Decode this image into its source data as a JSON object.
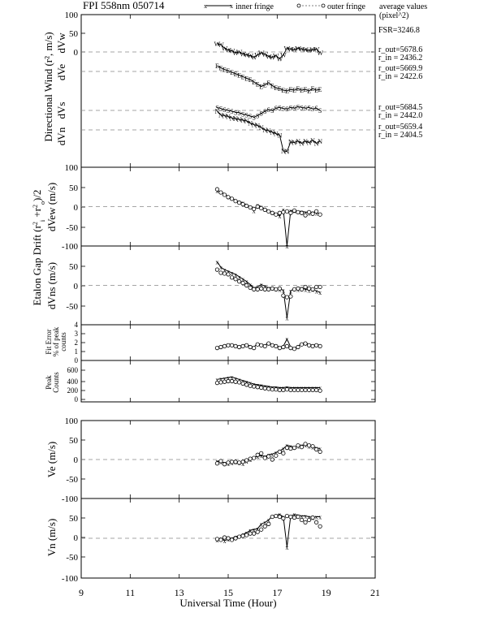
{
  "chart_data": {
    "type": "line",
    "title": "FPI 558nm 050714",
    "legend": {
      "inner": "inner fringe",
      "outer": "outer fringe",
      "avg": "average values",
      "avg_unit": "(pixel^2)",
      "placement": "top"
    },
    "xlabel": "Universal Time (Hour)",
    "xlim": [
      9,
      21
    ],
    "xticks": [
      "9",
      "11",
      "13",
      "15",
      "17",
      "19",
      "21"
    ],
    "x": [
      14.55,
      14.7,
      14.85,
      15.0,
      15.15,
      15.3,
      15.45,
      15.6,
      15.75,
      15.9,
      16.05,
      16.2,
      16.35,
      16.5,
      16.65,
      16.8,
      16.95,
      17.1,
      17.25,
      17.4,
      17.55,
      17.7,
      17.85,
      18.0,
      18.15,
      18.3,
      18.45,
      18.6,
      18.75
    ],
    "annotations": {
      "fsr": "FSR=3246.8",
      "w": [
        "r_out=5678.6",
        "r_in = 2436.2"
      ],
      "e": [
        "r_out=5669.9",
        "r_in = 2422.6"
      ],
      "s": [
        "r_out=5684.5",
        "r_in = 2442.0"
      ],
      "n": [
        "r_out=5659.4",
        "r_in = 2404.5"
      ]
    },
    "panels": [
      {
        "ylabel": "Directional Wind (r², m/s)",
        "yticks": [
          "100",
          "50",
          "0"
        ],
        "traces": [
          {
            "label": "dVw",
            "symbol": "W",
            "baseline": 0,
            "values": [
              22,
              20,
              10,
              5,
              3,
              -2,
              0,
              -5,
              -8,
              -10,
              -14,
              -8,
              -2,
              -6,
              -12,
              -14,
              -10,
              -18,
              -8,
              10,
              8,
              6,
              10,
              8,
              6,
              4,
              6,
              8,
              -2
            ]
          },
          {
            "label": "dVe",
            "symbol": "E",
            "baseline": 0,
            "values": [
              15,
              10,
              5,
              2,
              -2,
              -6,
              -10,
              -14,
              -18,
              -22,
              -28,
              -34,
              -40,
              -36,
              -30,
              -38,
              -44,
              -46,
              -50,
              -52,
              -48,
              -50,
              -46,
              -50,
              -48,
              -52,
              -46,
              -50,
              -48
            ]
          },
          {
            "label": "dVs",
            "symbol": "S",
            "baseline": 0,
            "values": [
              8,
              5,
              2,
              0,
              -2,
              -5,
              -6,
              -10,
              -12,
              -15,
              -18,
              -14,
              -8,
              -2,
              2,
              0,
              6,
              8,
              5,
              4,
              8,
              6,
              10,
              8,
              6,
              8,
              4,
              6,
              0
            ]
          },
          {
            "label": "dVn",
            "symbol": "N",
            "baseline": 0,
            "values": [
              50,
              40,
              38,
              36,
              32,
              30,
              28,
              26,
              24,
              18,
              14,
              12,
              6,
              0,
              -2,
              -6,
              -10,
              -14,
              -56,
              -58,
              -32,
              -34,
              -30,
              -36,
              -30,
              -34,
              -28,
              -36,
              -30
            ]
          }
        ]
      },
      {
        "ylabel": "dVew (m/s)",
        "ylim": [
          -100,
          100
        ],
        "yticks": [
          "100",
          "50",
          "0",
          "-50",
          "-100"
        ],
        "inner": [
          40,
          38,
          32,
          26,
          22,
          16,
          12,
          10,
          4,
          0,
          -10,
          4,
          0,
          -6,
          -10,
          -14,
          -18,
          -24,
          -8,
          -100,
          -10,
          -10,
          -12,
          -12,
          -14,
          -16,
          -14,
          -16,
          -18
        ],
        "outer": [
          44,
          36,
          30,
          24,
          20,
          14,
          10,
          6,
          2,
          -2,
          -6,
          0,
          -4,
          -8,
          -12,
          -16,
          -20,
          -16,
          -14,
          -12,
          -16,
          -10,
          -14,
          -16,
          -22,
          -14,
          -18,
          -12,
          -20
        ]
      },
      {
        "ylabel": "dVns (m/s)",
        "ylim": [
          -100,
          100
        ],
        "yticks": [
          "50",
          "0",
          "-50"
        ],
        "inner": [
          60,
          46,
          40,
          36,
          32,
          28,
          22,
          16,
          10,
          2,
          -6,
          -4,
          2,
          -2,
          -6,
          -6,
          -8,
          -10,
          -12,
          -82,
          -14,
          -8,
          -10,
          -6,
          -10,
          -12,
          -10,
          -14,
          -18
        ],
        "outer": [
          40,
          32,
          30,
          28,
          20,
          16,
          10,
          6,
          0,
          -6,
          -10,
          -10,
          -8,
          -10,
          -10,
          -8,
          -10,
          -8,
          -26,
          -30,
          -28,
          -10,
          -8,
          -10,
          -4,
          -8,
          -10,
          -4,
          -4
        ]
      },
      {
        "ylabel": "Fit Error % of peak counts",
        "ylim": [
          0,
          4
        ],
        "yticks": [
          "4",
          "3",
          "2",
          "1",
          "0"
        ],
        "inner": [
          1.5,
          1.6,
          1.7,
          1.8,
          1.8,
          1.7,
          1.6,
          1.7,
          1.8,
          1.6,
          1.5,
          1.9,
          1.8,
          1.7,
          2.0,
          1.8,
          1.7,
          1.5,
          1.6,
          2.4,
          1.5,
          1.4,
          1.6,
          1.9,
          2.0,
          1.8,
          1.7,
          1.8,
          1.7
        ],
        "outer": [
          1.4,
          1.5,
          1.6,
          1.7,
          1.7,
          1.6,
          1.5,
          1.6,
          1.7,
          1.5,
          1.4,
          1.8,
          1.7,
          1.6,
          1.9,
          1.7,
          1.6,
          1.4,
          1.5,
          1.6,
          1.4,
          1.3,
          1.5,
          1.8,
          1.9,
          1.7,
          1.6,
          1.7,
          1.6
        ]
      },
      {
        "ylabel": "Peak Counts",
        "ylim": [
          0,
          700
        ],
        "yticks": [
          "600",
          "400",
          "200",
          "0"
        ],
        "inner": [
          380,
          390,
          400,
          410,
          420,
          400,
          380,
          360,
          340,
          320,
          300,
          290,
          280,
          270,
          260,
          250,
          250,
          240,
          240,
          250,
          240,
          240,
          240,
          240,
          240,
          240,
          240,
          240,
          240
        ],
        "outer": [
          320,
          330,
          340,
          350,
          350,
          340,
          330,
          310,
          290,
          270,
          260,
          250,
          240,
          230,
          220,
          210,
          210,
          200,
          200,
          210,
          200,
          200,
          200,
          200,
          200,
          200,
          200,
          200,
          190
        ]
      },
      {
        "ylabel": "Ve (m/s)",
        "ylim": [
          -100,
          100
        ],
        "yticks": [
          "100",
          "50",
          "0",
          "-50",
          "-100"
        ],
        "inner": [
          -4,
          -6,
          -8,
          -10,
          -8,
          -6,
          -8,
          -10,
          -4,
          0,
          6,
          8,
          10,
          8,
          12,
          14,
          18,
          22,
          28,
          36,
          34,
          32,
          34,
          36,
          38,
          34,
          32,
          30,
          28
        ],
        "outer": [
          -10,
          -4,
          -12,
          -8,
          -6,
          -6,
          -8,
          -6,
          -2,
          2,
          4,
          12,
          16,
          4,
          8,
          0,
          10,
          20,
          16,
          30,
          28,
          30,
          36,
          32,
          40,
          36,
          34,
          26,
          20
        ]
      },
      {
        "ylabel": "Vn (m/s)",
        "ylim": [
          -100,
          100
        ],
        "yticks": [
          "50",
          "0",
          "-50",
          "-100"
        ],
        "inner": [
          -4,
          0,
          -6,
          -2,
          0,
          4,
          6,
          10,
          14,
          20,
          22,
          24,
          36,
          40,
          46,
          56,
          58,
          60,
          54,
          -22,
          56,
          60,
          58,
          56,
          56,
          54,
          52,
          54,
          54
        ],
        "outer": [
          -2,
          -4,
          2,
          0,
          -4,
          0,
          4,
          6,
          8,
          12,
          12,
          16,
          22,
          30,
          36,
          54,
          56,
          54,
          50,
          56,
          54,
          52,
          54,
          46,
          40,
          46,
          52,
          40,
          30
        ]
      }
    ]
  }
}
